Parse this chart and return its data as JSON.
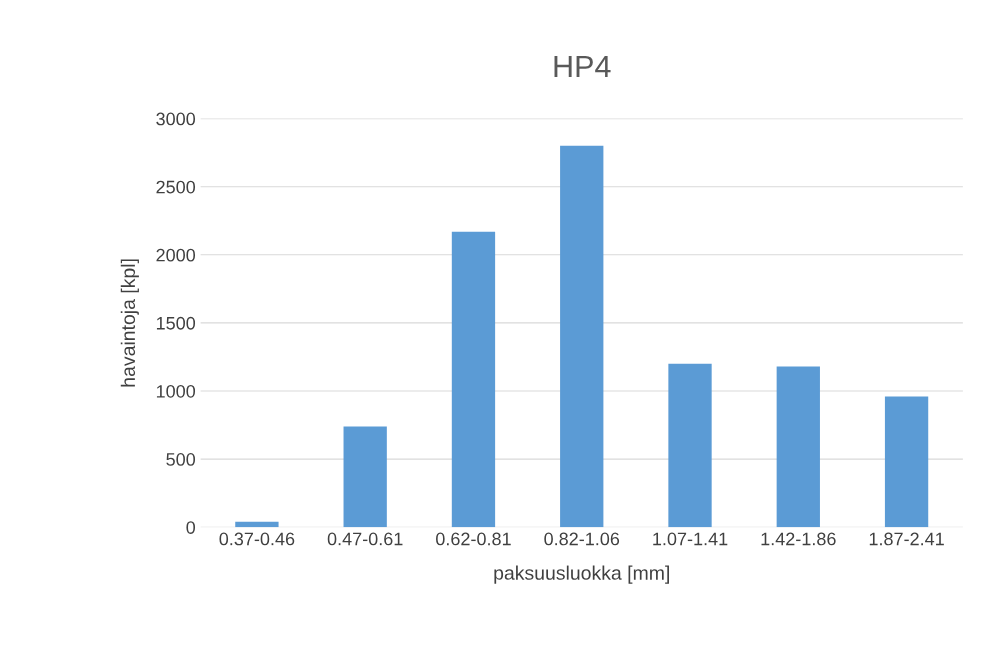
{
  "chart_data": {
    "type": "bar",
    "title": "HP4",
    "xlabel": "paksuusluokka [mm]",
    "ylabel": "havaintoja [kpl]",
    "categories": [
      "0.37-0.46",
      "0.47-0.61",
      "0.62-0.81",
      "0.82-1.06",
      "1.07-1.41",
      "1.42-1.86",
      "1.87-2.41"
    ],
    "values": [
      40,
      740,
      2170,
      2800,
      1200,
      1180,
      960
    ],
    "color": "#5b9bd5",
    "ylim": [
      0,
      3000
    ],
    "yticks": [
      0,
      500,
      1000,
      1500,
      2000,
      2500,
      3000
    ],
    "grid": "y",
    "legend": false
  }
}
